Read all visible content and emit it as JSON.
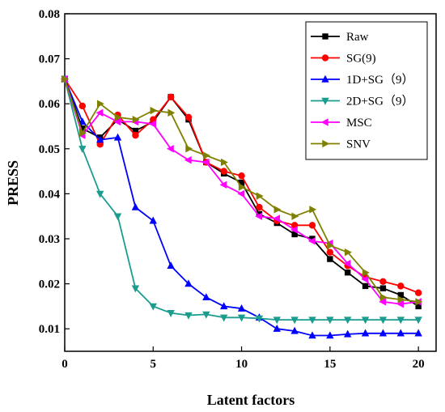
{
  "chart_data": {
    "type": "line",
    "title": "",
    "xlabel": "Latent factors",
    "ylabel": "PRESS",
    "xlim": [
      0,
      21
    ],
    "ylim": [
      0.005,
      0.08
    ],
    "x_ticks": [
      0,
      5,
      10,
      15,
      20
    ],
    "y_ticks": [
      0.01,
      0.02,
      0.03,
      0.04,
      0.05,
      0.06,
      0.07,
      0.08
    ],
    "y_tick_labels": [
      "0.01",
      "0.02",
      "0.03",
      "0.04",
      "0.05",
      "0.06",
      "0.07",
      "0.08"
    ],
    "grid": false,
    "legend_position": "top-right",
    "x": [
      0,
      1,
      2,
      3,
      4,
      5,
      6,
      7,
      8,
      9,
      10,
      11,
      12,
      13,
      14,
      15,
      16,
      17,
      18,
      19,
      20
    ],
    "series": [
      {
        "name": "Raw",
        "color": "#000000",
        "marker": "square",
        "values": [
          0.0655,
          0.0545,
          0.0525,
          0.0565,
          0.054,
          0.056,
          0.0615,
          0.0565,
          0.047,
          0.0445,
          0.0425,
          0.0355,
          0.0335,
          0.031,
          0.03,
          0.0255,
          0.0225,
          0.0195,
          0.019,
          0.0175,
          0.015
        ]
      },
      {
        "name": "SG(9)",
        "color": "#ff0000",
        "marker": "circle",
        "values": [
          0.0655,
          0.0595,
          0.051,
          0.0575,
          0.053,
          0.0565,
          0.0615,
          0.057,
          0.047,
          0.045,
          0.044,
          0.037,
          0.034,
          0.033,
          0.033,
          0.027,
          0.024,
          0.0215,
          0.0205,
          0.0195,
          0.018
        ]
      },
      {
        "name": "1D+SG（9）",
        "color": "#0000ff",
        "marker": "triangle-up",
        "values": [
          0.0655,
          0.056,
          0.052,
          0.0525,
          0.037,
          0.034,
          0.024,
          0.02,
          0.017,
          0.015,
          0.0145,
          0.0125,
          0.01,
          0.0095,
          0.0085,
          0.0085,
          0.0088,
          0.009,
          0.009,
          0.009,
          0.009
        ]
      },
      {
        "name": "2D+SG（9）",
        "color": "#1a9c8f",
        "marker": "triangle-down",
        "values": [
          0.0655,
          0.05,
          0.04,
          0.035,
          0.019,
          0.015,
          0.0135,
          0.013,
          0.0132,
          0.0125,
          0.0125,
          0.0123,
          0.012,
          0.012,
          0.012,
          0.012,
          0.012,
          0.012,
          0.012,
          0.012,
          0.012
        ]
      },
      {
        "name": "MSC",
        "color": "#ff00ff",
        "marker": "triangle-left",
        "values": [
          0.0655,
          0.053,
          0.058,
          0.056,
          0.056,
          0.0555,
          0.05,
          0.0475,
          0.047,
          0.042,
          0.04,
          0.035,
          0.0345,
          0.032,
          0.0295,
          0.029,
          0.0245,
          0.021,
          0.016,
          0.0155,
          0.016
        ]
      },
      {
        "name": "SNV",
        "color": "#808000",
        "marker": "triangle-right",
        "values": [
          0.0655,
          0.0535,
          0.06,
          0.057,
          0.0565,
          0.0585,
          0.058,
          0.05,
          0.0485,
          0.047,
          0.0415,
          0.0395,
          0.0365,
          0.035,
          0.0365,
          0.0285,
          0.027,
          0.0225,
          0.017,
          0.0165,
          0.016
        ]
      }
    ]
  }
}
